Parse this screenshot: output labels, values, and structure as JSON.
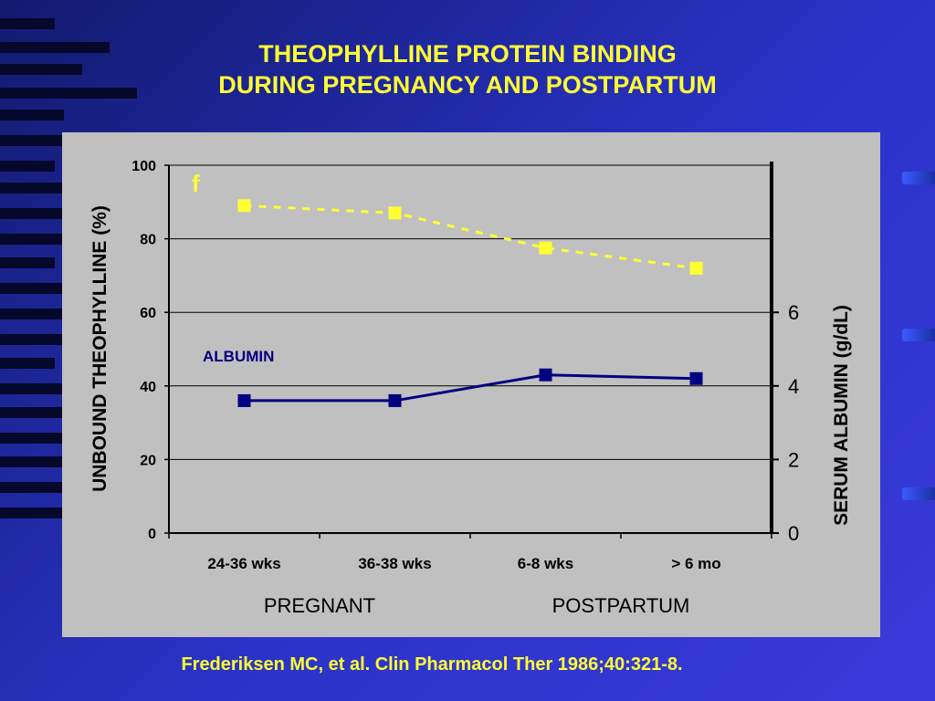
{
  "title_line1": "THEOPHYLLINE PROTEIN BINDING",
  "title_line2": "DURING PREGNANCY AND POSTPARTUM",
  "citation": "Frederiksen MC, et al. Clin Pharmacol Ther 1986;40:321-8.",
  "colors": {
    "title": "#ffff33",
    "background": "#2a33c8",
    "plot_area": "#c0c0c0",
    "unbound_series": "#ffff33",
    "albumin_series": "#000080"
  },
  "chart_data": {
    "type": "line",
    "categories": [
      "24-36 wks",
      "36-38 wks",
      "6-8 wks",
      "> 6 mo"
    ],
    "groups": [
      {
        "label": "PREGNANT",
        "categories": [
          "24-36 wks",
          "36-38 wks"
        ]
      },
      {
        "label": "POSTPARTUM",
        "categories": [
          "6-8 wks",
          "> 6 mo"
        ]
      }
    ],
    "ylabel": "UNBOUND THEOPHYLLINE (%)",
    "ylim": [
      0,
      100
    ],
    "yticks": [
      0,
      20,
      40,
      60,
      80,
      100
    ],
    "y2label": "SERUM ALBUMIN (g/dL)",
    "y2lim": [
      0,
      10
    ],
    "y2ticks": [
      0,
      2,
      4,
      6
    ],
    "grid": true,
    "series": [
      {
        "values": [
          89,
          87,
          77.5,
          72
        ],
        "axis": "left",
        "style": "dashed",
        "marker": "square",
        "annotation": "f"
      },
      {
        "name": "ALBUMIN",
        "values": [
          3.6,
          3.6,
          4.3,
          4.2
        ],
        "axis": "right",
        "style": "solid",
        "marker": "square"
      }
    ]
  }
}
